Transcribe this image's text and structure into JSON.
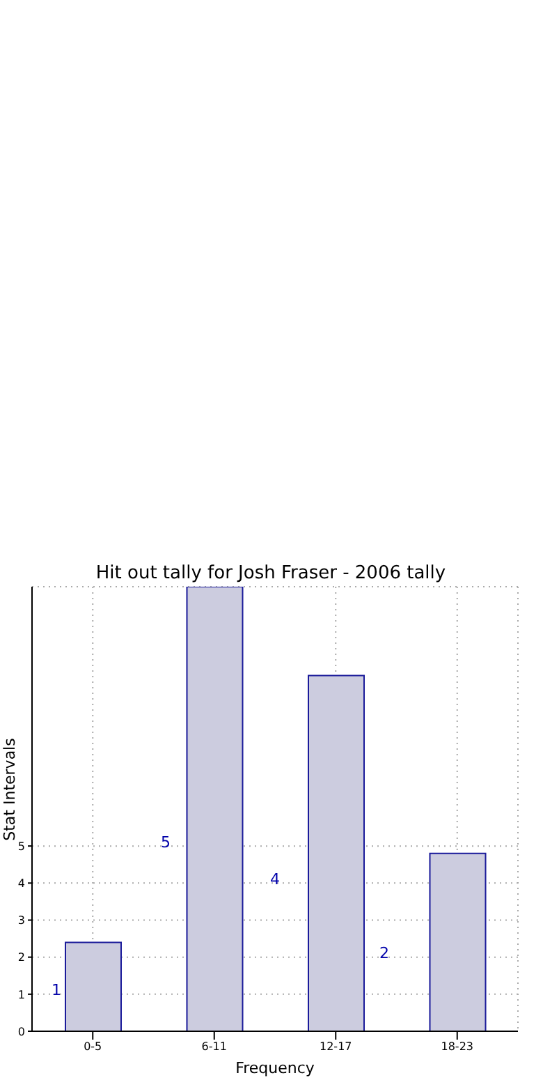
{
  "chart_data": {
    "type": "bar",
    "title": "Hit out tally for Josh Fraser - 2006 tally",
    "xlabel": "Frequency",
    "ylabel": "Stat Intervals",
    "categories": [
      "0-5",
      "6-11",
      "12-17",
      "18-23"
    ],
    "values": [
      2.4,
      12,
      9.6,
      4.8
    ],
    "color": "#ccccdf",
    "ylim": [
      0,
      12
    ],
    "yticks": [
      0,
      1,
      2,
      3,
      4,
      5
    ],
    "grid": true,
    "annotations": [
      "1",
      "5",
      "4",
      "2"
    ]
  }
}
